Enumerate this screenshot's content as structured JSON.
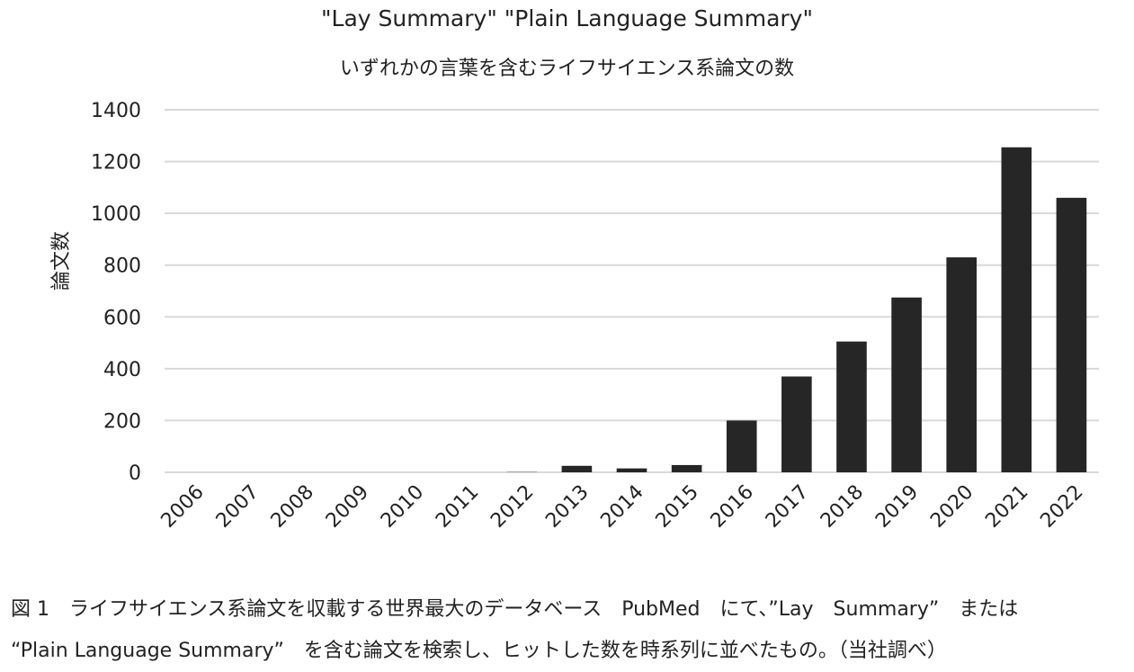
{
  "chart_data": {
    "type": "bar",
    "title": "\"Lay Summary\" \"Plain Language Summary\"",
    "subtitle": "いずれかの言葉を含むライフサイエンス系論文の数",
    "xlabel": "",
    "ylabel": "論文数",
    "categories": [
      "2006",
      "2007",
      "2008",
      "2009",
      "2010",
      "2011",
      "2012",
      "2013",
      "2014",
      "2015",
      "2016",
      "2017",
      "2018",
      "2019",
      "2020",
      "2021",
      "2022"
    ],
    "values": [
      0,
      0,
      0,
      0,
      0,
      0,
      1,
      25,
      15,
      28,
      200,
      370,
      505,
      675,
      830,
      1255,
      1060
    ],
    "ylim": [
      0,
      1400
    ],
    "yticks": [
      0,
      200,
      400,
      600,
      800,
      1000,
      1200,
      1400
    ],
    "grid": true,
    "bar_color": "#262626",
    "grid_color": "#d9d9d9"
  },
  "caption": {
    "line1": "図 1　ライフサイエンス系論文を収載する世界最大のデータベース　PubMed　にて、”Lay　Summary”　または",
    "line2": "“Plain Language Summary”　を含む論文を検索し、ヒットした数を時系列に並べたもの。（当社調べ）"
  }
}
